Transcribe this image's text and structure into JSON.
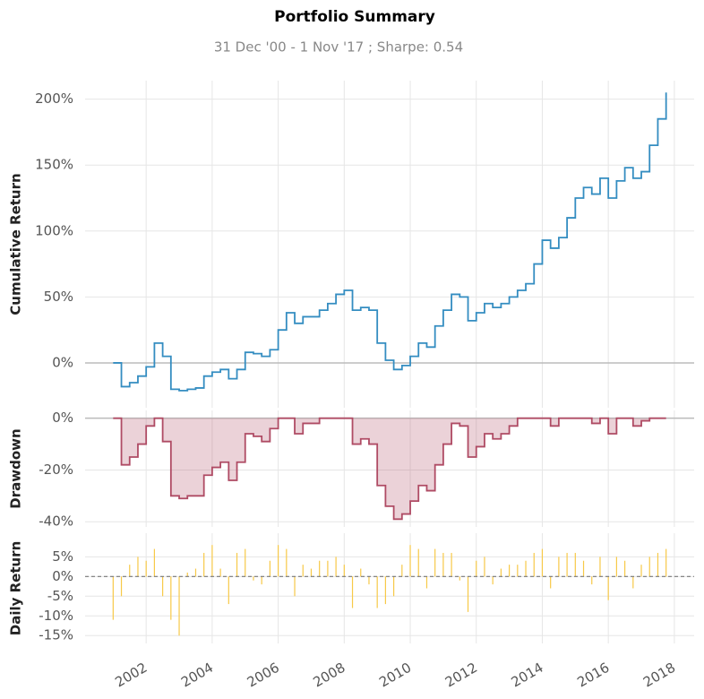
{
  "chart_data": [
    {
      "type": "line",
      "title": "Portfolio Summary",
      "subtitle": "31 Dec '00 -  1 Nov '17 ;  Sharpe: 0.54",
      "ylabel": "Cumulative Return",
      "x": [
        2001,
        2001.25,
        2001.5,
        2001.75,
        2002,
        2002.25,
        2002.5,
        2002.75,
        2003,
        2003.25,
        2003.5,
        2003.75,
        2004,
        2004.25,
        2004.5,
        2004.75,
        2005,
        2005.25,
        2005.5,
        2005.75,
        2006,
        2006.25,
        2006.5,
        2006.75,
        2007,
        2007.25,
        2007.5,
        2007.75,
        2008,
        2008.25,
        2008.5,
        2008.75,
        2009,
        2009.25,
        2009.5,
        2009.75,
        2010,
        2010.25,
        2010.5,
        2010.75,
        2011,
        2011.25,
        2011.5,
        2011.75,
        2012,
        2012.25,
        2012.5,
        2012.75,
        2013,
        2013.25,
        2013.5,
        2013.75,
        2014,
        2014.25,
        2014.5,
        2014.75,
        2015,
        2015.25,
        2015.5,
        2015.75,
        2016,
        2016.25,
        2016.5,
        2016.75,
        2017,
        2017.25,
        2017.5,
        2017.75
      ],
      "series": [
        {
          "color": "#348dc1",
          "values": [
            0,
            -18,
            -15,
            -10,
            -3,
            15,
            5,
            -20,
            -21,
            -20,
            -19,
            -10,
            -7,
            -5,
            -12,
            -5,
            8,
            7,
            5,
            10,
            25,
            38,
            30,
            35,
            35,
            40,
            45,
            52,
            55,
            40,
            42,
            40,
            15,
            2,
            -5,
            -2,
            5,
            15,
            12,
            28,
            40,
            52,
            50,
            32,
            38,
            45,
            42,
            45,
            50,
            55,
            60,
            75,
            93,
            87,
            95,
            110,
            125,
            133,
            128,
            140,
            125,
            138,
            148,
            140,
            145,
            165,
            185,
            205
          ]
        }
      ],
      "xlim": [
        2000.15,
        2018.6
      ],
      "xticks": [
        2002,
        2004,
        2006,
        2008,
        2010,
        2012,
        2014,
        2016,
        2018
      ],
      "ylim": [
        -34,
        214
      ],
      "yticks": [
        {
          "value": 0,
          "label": "0%"
        },
        {
          "value": 50,
          "label": "50%"
        },
        {
          "value": 100,
          "label": "100%"
        },
        {
          "value": 150,
          "label": "150%"
        },
        {
          "value": 200,
          "label": "200%"
        }
      ],
      "grid": true
    },
    {
      "type": "area",
      "ylabel": "Drawdown",
      "x": [
        2001,
        2001.25,
        2001.5,
        2001.75,
        2002,
        2002.25,
        2002.5,
        2002.75,
        2003,
        2003.25,
        2003.5,
        2003.75,
        2004,
        2004.25,
        2004.5,
        2004.75,
        2005,
        2005.25,
        2005.5,
        2005.75,
        2006,
        2006.25,
        2006.5,
        2006.75,
        2007,
        2007.25,
        2007.5,
        2007.75,
        2008,
        2008.25,
        2008.5,
        2008.75,
        2009,
        2009.25,
        2009.5,
        2009.75,
        2010,
        2010.25,
        2010.5,
        2010.75,
        2011,
        2011.25,
        2011.5,
        2011.75,
        2012,
        2012.25,
        2012.5,
        2012.75,
        2013,
        2013.25,
        2013.5,
        2013.75,
        2014,
        2014.25,
        2014.5,
        2014.75,
        2015,
        2015.25,
        2015.5,
        2015.75,
        2016,
        2016.25,
        2016.5,
        2016.75,
        2017,
        2017.25,
        2017.5,
        2017.75
      ],
      "series": [
        {
          "color": "#af4b64",
          "values": [
            0,
            -18,
            -15,
            -10,
            -3,
            0,
            -9,
            -30,
            -31,
            -30,
            -30,
            -22,
            -19,
            -17,
            -24,
            -17,
            -6,
            -7,
            -9,
            -4,
            0,
            0,
            -6,
            -2,
            -2,
            0,
            0,
            0,
            0,
            -10,
            -8,
            -10,
            -26,
            -34,
            -39,
            -37,
            -32,
            -26,
            -28,
            -18,
            -10,
            -2,
            -3,
            -15,
            -11,
            -6,
            -8,
            -6,
            -3,
            0,
            0,
            0,
            0,
            -3,
            0,
            0,
            0,
            0,
            -2,
            0,
            -6,
            0,
            0,
            -3,
            -1,
            0,
            0,
            0
          ]
        }
      ],
      "xlim": [
        2000.15,
        2018.6
      ],
      "xticks": [
        2002,
        2004,
        2006,
        2008,
        2010,
        2012,
        2014,
        2016,
        2018
      ],
      "ylim": [
        -42,
        3
      ],
      "yticks": [
        {
          "value": 0,
          "label": "0%"
        },
        {
          "value": -20,
          "label": "-20%"
        },
        {
          "value": -40,
          "label": "-40%"
        }
      ],
      "grid": true
    },
    {
      "type": "bar",
      "ylabel": "Daily Return",
      "x": [
        2001,
        2001.25,
        2001.5,
        2001.75,
        2002,
        2002.25,
        2002.5,
        2002.75,
        2003,
        2003.25,
        2003.5,
        2003.75,
        2004,
        2004.25,
        2004.5,
        2004.75,
        2005,
        2005.25,
        2005.5,
        2005.75,
        2006,
        2006.25,
        2006.5,
        2006.75,
        2007,
        2007.25,
        2007.5,
        2007.75,
        2008,
        2008.25,
        2008.5,
        2008.75,
        2009,
        2009.25,
        2009.5,
        2009.75,
        2010,
        2010.25,
        2010.5,
        2010.75,
        2011,
        2011.25,
        2011.5,
        2011.75,
        2012,
        2012.25,
        2012.5,
        2012.75,
        2013,
        2013.25,
        2013.5,
        2013.75,
        2014,
        2014.25,
        2014.5,
        2014.75,
        2015,
        2015.25,
        2015.5,
        2015.75,
        2016,
        2016.25,
        2016.5,
        2016.75,
        2017,
        2017.25,
        2017.5,
        2017.75
      ],
      "series": [
        {
          "color": "#f7c948",
          "values": [
            -11,
            -5,
            3,
            5,
            4,
            7,
            -5,
            -11,
            -15,
            1,
            2,
            6,
            8,
            2,
            -7,
            6,
            7,
            -1,
            -2,
            4,
            8,
            7,
            -5,
            3,
            2,
            4,
            4,
            5,
            3,
            -8,
            2,
            -2,
            -8,
            -7,
            -5,
            3,
            8,
            7,
            -3,
            7,
            6,
            6,
            -1,
            -9,
            4,
            5,
            -2,
            2,
            3,
            3,
            4,
            6,
            7,
            -3,
            5,
            6,
            6,
            4,
            -2,
            5,
            -6,
            5,
            4,
            -3,
            3,
            5,
            6,
            7
          ]
        }
      ],
      "xlim": [
        2000.15,
        2018.6
      ],
      "xticks": [
        2002,
        2004,
        2006,
        2008,
        2010,
        2012,
        2014,
        2016,
        2018
      ],
      "ylim": [
        -17,
        11
      ],
      "yticks": [
        {
          "value": 5,
          "label": "5%"
        },
        {
          "value": 0,
          "label": "0%"
        },
        {
          "value": -5,
          "label": "-5%"
        },
        {
          "value": -10,
          "label": "-10%"
        },
        {
          "value": -15,
          "label": "-15%"
        }
      ],
      "grid": true
    }
  ]
}
